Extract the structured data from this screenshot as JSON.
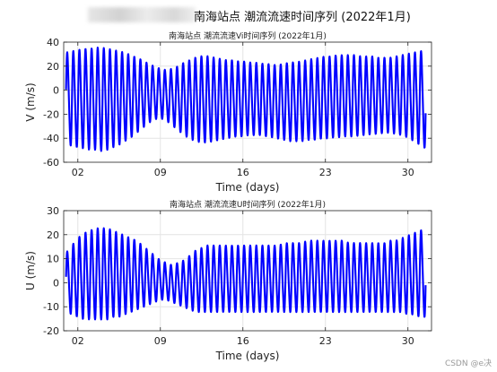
{
  "figure_title": "南海站点 潮流流速时间序列 (2022年1月)",
  "watermark": "CSDN @e决",
  "chart_data": [
    {
      "type": "line",
      "title": "南海站点 潮流流速Vi时间序列 (2022年1月)",
      "xlabel": "Time (days)",
      "ylabel": "V (m/s)",
      "xlim": [
        0.8,
        32.0
      ],
      "ylim": [
        -60,
        40
      ],
      "xticks": [
        2,
        9,
        16,
        23,
        30
      ],
      "xticklabels": [
        "02",
        "09",
        "16",
        "23",
        "30"
      ],
      "yticks": [
        -60,
        -40,
        -20,
        0,
        20,
        40
      ],
      "grid": true,
      "color": "#0000ff",
      "series": [
        {
          "x": [
            1,
            1.5,
            2,
            2.5,
            3,
            3.5,
            4,
            4.5,
            5,
            5.5,
            6,
            6.5,
            7,
            7.5,
            8,
            8.5,
            9,
            9.5,
            10,
            10.5,
            11,
            11.5,
            12,
            12.5,
            13,
            13.5,
            14,
            14.5,
            15,
            15.5,
            16,
            16.5,
            17,
            17.5,
            18,
            18.5,
            19,
            19.5,
            20,
            20.5,
            21,
            21.5,
            22,
            22.5,
            23,
            23.5,
            24,
            24.5,
            25,
            25.5,
            26,
            26.5,
            27,
            27.5,
            28,
            28.5,
            29,
            29.5,
            30,
            30.5,
            31,
            31.5
          ],
          "envelope_upper": [
            30,
            31,
            32,
            33,
            33,
            34,
            34,
            33,
            32,
            31,
            30,
            28,
            26,
            24,
            21,
            19,
            17,
            16,
            17,
            19,
            22,
            24,
            26,
            27,
            27,
            26,
            25,
            24,
            24,
            23,
            23,
            22,
            22,
            21,
            21,
            20,
            20,
            21,
            22,
            22,
            23,
            24,
            25,
            26,
            27,
            27,
            28,
            28,
            28,
            28,
            27,
            27,
            27,
            26,
            26,
            26,
            27,
            28,
            29,
            30,
            31,
            32
          ],
          "envelope_lower": [
            -44,
            -46,
            -47,
            -48,
            -49,
            -49,
            -50,
            -49,
            -47,
            -45,
            -42,
            -39,
            -35,
            -31,
            -27,
            -24,
            -23,
            -25,
            -29,
            -33,
            -37,
            -40,
            -42,
            -43,
            -43,
            -42,
            -41,
            -40,
            -39,
            -38,
            -38,
            -37,
            -37,
            -37,
            -38,
            -39,
            -40,
            -41,
            -42,
            -42,
            -42,
            -41,
            -41,
            -40,
            -40,
            -39,
            -39,
            -38,
            -38,
            -38,
            -37,
            -37,
            -36,
            -36,
            -35,
            -35,
            -36,
            -37,
            -39,
            -42,
            -45,
            -48
          ]
        }
      ]
    },
    {
      "type": "line",
      "title": "南海站点 潮流流速U时间序列 (2022年1月)",
      "xlabel": "Time (days)",
      "ylabel": "U (m/s)",
      "xlim": [
        0.8,
        32.0
      ],
      "ylim": [
        -20,
        30
      ],
      "xticks": [
        2,
        9,
        16,
        23,
        30
      ],
      "xticklabels": [
        "02",
        "09",
        "16",
        "23",
        "30"
      ],
      "yticks": [
        -20,
        -10,
        0,
        10,
        20,
        30
      ],
      "grid": true,
      "color": "#0000ff",
      "series": [
        {
          "x": [
            1,
            1.5,
            2,
            2.5,
            3,
            3.5,
            4,
            4.5,
            5,
            5.5,
            6,
            6.5,
            7,
            7.5,
            8,
            8.5,
            9,
            9.5,
            10,
            10.5,
            11,
            11.5,
            12,
            12.5,
            13,
            13.5,
            14,
            14.5,
            15,
            15.5,
            16,
            16.5,
            17,
            17.5,
            18,
            18.5,
            19,
            19.5,
            20,
            20.5,
            21,
            21.5,
            22,
            22.5,
            23,
            23.5,
            24,
            24.5,
            25,
            25.5,
            26,
            26.5,
            27,
            27.5,
            28,
            28.5,
            29,
            29.5,
            30,
            30.5,
            31,
            31.5
          ],
          "envelope_upper": [
            12,
            15,
            18,
            20,
            21,
            22,
            22,
            22,
            21,
            20,
            19,
            18,
            17,
            15,
            13,
            11,
            9,
            8,
            7,
            8,
            9,
            11,
            13,
            14,
            15,
            15,
            15,
            15,
            15,
            15,
            15,
            15,
            15,
            15,
            15,
            15,
            15,
            16,
            16,
            16,
            16,
            17,
            17,
            17,
            17,
            17,
            17,
            17,
            16,
            16,
            16,
            16,
            16,
            16,
            16,
            17,
            17,
            18,
            19,
            20,
            21,
            22
          ],
          "envelope_lower": [
            -12,
            -13,
            -14,
            -15,
            -15,
            -15,
            -15,
            -15,
            -14,
            -14,
            -13,
            -12,
            -11,
            -10,
            -9,
            -8,
            -7,
            -7,
            -8,
            -9,
            -10,
            -11,
            -12,
            -12,
            -12,
            -12,
            -12,
            -12,
            -12,
            -12,
            -12,
            -12,
            -12,
            -12,
            -12,
            -12,
            -12,
            -12,
            -12,
            -12,
            -12,
            -12,
            -12,
            -12,
            -12,
            -12,
            -12,
            -12,
            -12,
            -12,
            -12,
            -12,
            -12,
            -12,
            -12,
            -12,
            -12,
            -12,
            -13,
            -13,
            -14,
            -14
          ]
        }
      ]
    }
  ]
}
